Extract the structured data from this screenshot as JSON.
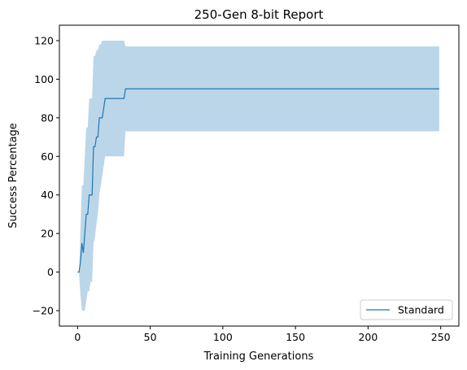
{
  "chart_data": {
    "type": "line",
    "title": "250-Gen 8-bit Report",
    "xlabel": "Training Generations",
    "ylabel": "Success Percentage",
    "xlim": [
      -12.5,
      262.5
    ],
    "ylim": [
      -28,
      128
    ],
    "xticks": [
      0,
      50,
      100,
      150,
      200,
      250
    ],
    "yticks": [
      -20,
      0,
      20,
      40,
      60,
      80,
      100,
      120
    ],
    "ytick_labels": [
      "−20",
      "0",
      "20",
      "40",
      "60",
      "80",
      "100",
      "120"
    ],
    "grid": false,
    "legend_position": "lower-right",
    "series": [
      {
        "name": "Standard",
        "color": "#1f77b4",
        "band_color": "#1f77b4",
        "x": [
          0,
          1,
          2,
          3,
          4,
          5,
          6,
          7,
          8,
          9,
          10,
          11,
          12,
          13,
          14,
          15,
          16,
          17,
          18,
          19,
          20,
          21,
          22,
          23,
          24,
          25,
          26,
          27,
          28,
          29,
          30,
          31,
          32,
          33,
          34,
          35,
          40,
          60,
          100,
          150,
          200,
          249
        ],
        "mean": [
          0,
          0,
          5,
          15,
          10,
          20,
          30,
          30,
          40,
          40,
          40,
          65,
          65,
          70,
          70,
          80,
          80,
          80,
          85,
          90,
          90,
          90,
          90,
          90,
          90,
          90,
          90,
          90,
          90,
          90,
          90,
          90,
          90,
          95,
          95,
          95,
          95,
          95,
          95,
          95,
          95,
          95
        ],
        "lower": [
          0,
          0,
          -12,
          -20,
          -20,
          -20,
          -15,
          -10,
          -10,
          -5,
          -5,
          15,
          18,
          25,
          30,
          40,
          45,
          50,
          55,
          60,
          60,
          60,
          60,
          60,
          60,
          60,
          60,
          60,
          60,
          60,
          60,
          60,
          60,
          73,
          73,
          73,
          73,
          73,
          73,
          73,
          73,
          73
        ],
        "upper": [
          0,
          0,
          22,
          45,
          45,
          60,
          75,
          75,
          90,
          90,
          90,
          112,
          112,
          115,
          115,
          118,
          118,
          120,
          120,
          120,
          120,
          120,
          120,
          120,
          120,
          120,
          120,
          120,
          120,
          120,
          120,
          120,
          120,
          117,
          117,
          117,
          117,
          117,
          117,
          117,
          117,
          117
        ]
      }
    ]
  }
}
